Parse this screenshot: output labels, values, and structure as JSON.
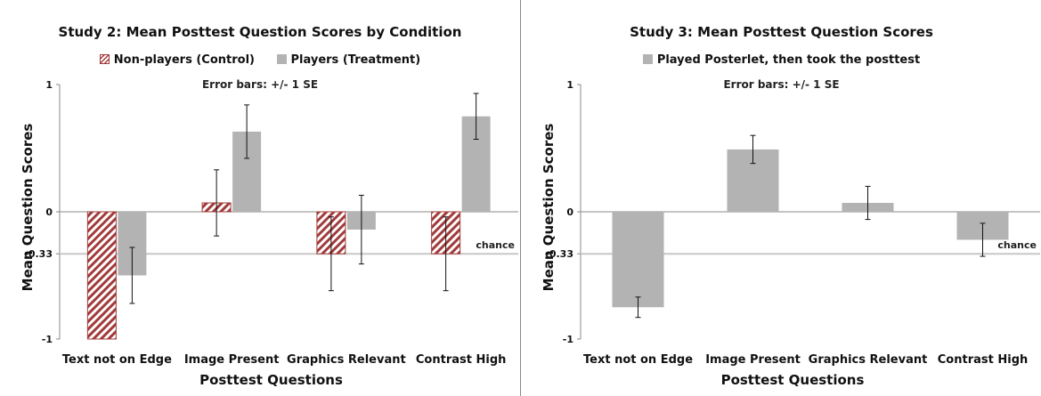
{
  "chart_data": [
    {
      "type": "bar",
      "title": "Study 2: Mean Posttest Question Scores by Condition",
      "note": "Error bars: +/- 1 SE",
      "xlabel": "Posttest Questions",
      "ylabel": "Mean Question Scores",
      "ylim": [
        -1,
        1
      ],
      "yticks": [
        "1",
        "0",
        "-0.33",
        "-1"
      ],
      "reference_line": {
        "value": -0.33,
        "label": "chance"
      },
      "categories": [
        "Text not on Edge",
        "Image Present",
        "Graphics Relevant",
        "Contrast High"
      ],
      "legend_position": "top-center",
      "series": [
        {
          "name": "Non-players (Control)",
          "style": "hatched",
          "color": "#a23b3b",
          "values": [
            -1.0,
            0.07,
            -0.33,
            -0.33
          ],
          "se": [
            0.0,
            0.26,
            0.29,
            0.29
          ]
        },
        {
          "name": "Players (Treatment)",
          "style": "solid",
          "color": "#b3b3b3",
          "values": [
            -0.5,
            0.63,
            -0.14,
            0.75
          ],
          "se": [
            0.22,
            0.21,
            0.27,
            0.18
          ]
        }
      ]
    },
    {
      "type": "bar",
      "title": "Study 3: Mean Posttest Question Scores",
      "note": "Error bars: +/- 1 SE",
      "xlabel": "Posttest Questions",
      "ylabel": "Mean Question Scores",
      "ylim": [
        -1,
        1
      ],
      "yticks": [
        "1",
        "0",
        "-0.33",
        "-1"
      ],
      "reference_line": {
        "value": -0.33,
        "label": "chance"
      },
      "categories": [
        "Text not on Edge",
        "Image Present",
        "Graphics Relevant",
        "Contrast High"
      ],
      "legend_position": "top-center",
      "series": [
        {
          "name": "Played Posterlet, then took the posttest",
          "style": "solid",
          "color": "#b3b3b3",
          "values": [
            -0.75,
            0.49,
            0.07,
            -0.22
          ],
          "se": [
            0.08,
            0.11,
            0.13,
            0.13
          ]
        }
      ]
    }
  ]
}
